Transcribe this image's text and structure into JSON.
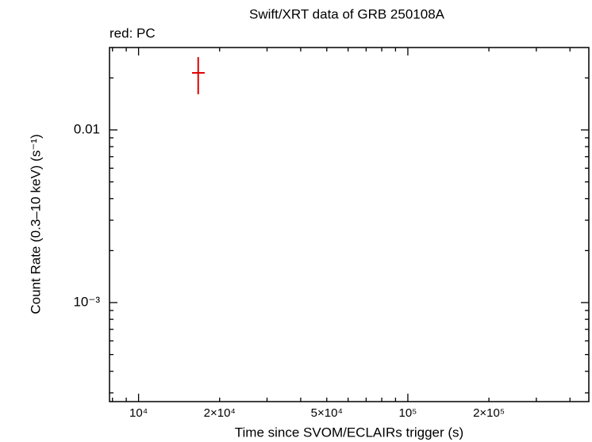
{
  "chart_data": {
    "type": "scatter",
    "title": "Swift/XRT data of GRB 250108A",
    "subtitle": "red: PC",
    "x_label": "Time since SVOM/ECLAIRs trigger (s)",
    "y_label": "Count Rate (0.3–10 keV) (s⁻¹)",
    "x_log": true,
    "y_log": true,
    "xlim": [
      7800,
      470000
    ],
    "ylim": [
      0.000267,
      0.03
    ],
    "xticks": [
      {
        "value": 10000,
        "label": "10⁴"
      },
      {
        "value": 20000,
        "label": "2×10⁴"
      },
      {
        "value": 50000,
        "label": "5×10⁴"
      },
      {
        "value": 100000,
        "label": "10⁵"
      },
      {
        "value": 200000,
        "label": "2×10⁵"
      }
    ],
    "xminorticks": [
      8000,
      9000,
      30000,
      40000,
      60000,
      70000,
      80000,
      90000,
      300000,
      400000
    ],
    "yticks": [
      0.01,
      {
        "value": 0.001,
        "label": "10⁻³"
      }
    ],
    "yminorticks": [
      0.0003,
      0.0004,
      0.0005,
      0.0006,
      0.0007,
      0.0008,
      0.0009,
      0.002,
      0.003,
      0.004,
      0.005,
      0.006,
      0.007,
      0.008,
      0.009,
      0.02
    ],
    "series": [
      {
        "name": "PC",
        "color": "#e00000",
        "x": [
          16650
        ],
        "xerr_low": [
          850
        ],
        "xerr_high": [
          950
        ],
        "y": [
          0.0214
        ],
        "yerr_low": [
          0.0053
        ],
        "yerr_high": [
          0.005
        ]
      }
    ]
  }
}
